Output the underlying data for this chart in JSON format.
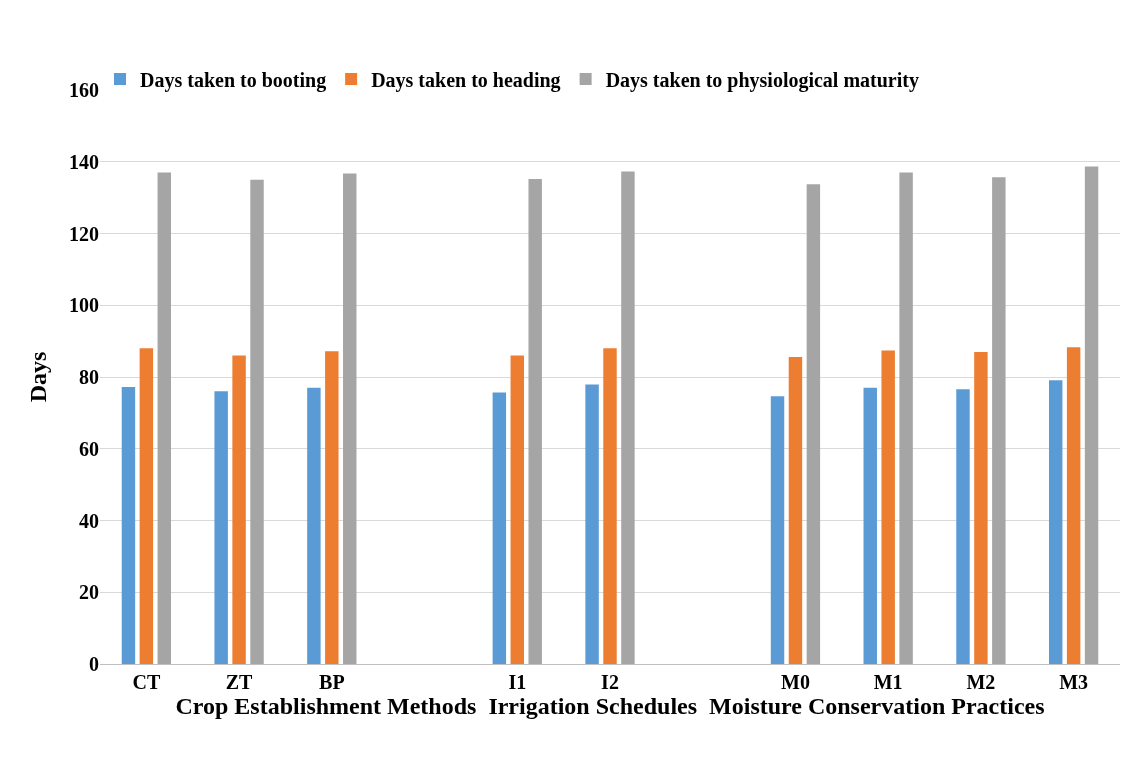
{
  "chart_data": {
    "type": "bar",
    "xlabel": "Crop Establishment Methods  Irrigation Schedules  Moisture Conservation Practices",
    "ylabel": "Days",
    "categories": [
      "CT",
      "ZT",
      "BP",
      null,
      "I1",
      "I2",
      null,
      "M0",
      "M1",
      "M2",
      "M3"
    ],
    "series": [
      {
        "name": "Days taken to booting",
        "color": "#5b9bd5",
        "values": [
          77.2,
          76,
          77,
          null,
          75.7,
          77.9,
          null,
          74.6,
          77,
          76.6,
          79.1
        ]
      },
      {
        "name": "Days taken to heading",
        "color": "#ed7d31",
        "values": [
          88,
          86,
          87.2,
          null,
          86,
          88,
          null,
          85.6,
          87.4,
          87,
          88.3
        ]
      },
      {
        "name": "Days taken to physiological maturity",
        "color": "#a5a5a5",
        "values": [
          137,
          135,
          136.7,
          null,
          135.2,
          137.3,
          null,
          133.7,
          137,
          135.7,
          138.7
        ]
      }
    ],
    "ylim": [
      0,
      160
    ],
    "yticks": [
      0,
      20,
      40,
      60,
      80,
      100,
      120,
      140,
      160
    ],
    "grid": "y",
    "legend": "top left"
  }
}
